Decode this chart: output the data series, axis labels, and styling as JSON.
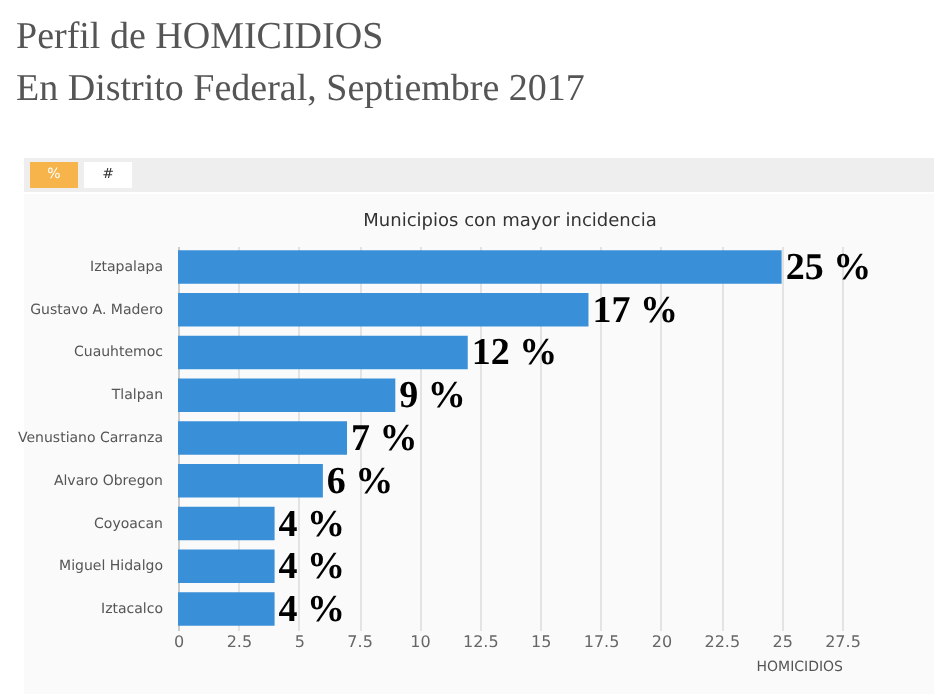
{
  "chart_data": {
    "type": "bar",
    "orientation": "horizontal",
    "title": "Municipios con mayor incidencia",
    "annotations": [
      "Perfil de HOMICIDIOS",
      "En Distrito Federal, Septiembre 2017",
      "%",
      "#"
    ],
    "categories": [
      "Iztapalapa",
      "Gustavo A. Madero",
      "Cuauhtemoc",
      "Tlalpan",
      "Venustiano Carranza",
      "Alvaro Obregon",
      "Coyoacan",
      "Miguel Hidalgo",
      "Iztacalco"
    ],
    "values": [
      25,
      17,
      12,
      9,
      7,
      6,
      4,
      4,
      4
    ],
    "value_labels": [
      "25 %",
      "17 %",
      "12 %",
      "9 %",
      "7 %",
      "6 %",
      "4 %",
      "4 %",
      "4 %"
    ],
    "color": "#3a8fd9",
    "xlabel": "HOMICIDIOS",
    "xlim": [
      0,
      27.5
    ],
    "xticks": [
      0,
      2.5,
      5,
      7.5,
      10,
      12.5,
      15,
      17.5,
      20,
      22.5,
      25,
      27.5
    ],
    "grid": "x"
  }
}
